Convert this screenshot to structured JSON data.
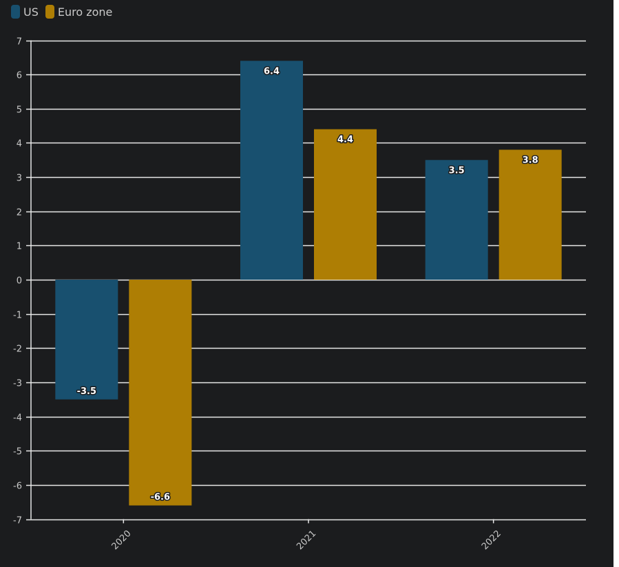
{
  "chart_data": {
    "type": "bar",
    "categories": [
      "2020",
      "2021",
      "2022"
    ],
    "series": [
      {
        "name": "US",
        "values": [
          -3.5,
          6.4,
          3.5
        ],
        "color": "#18506f"
      },
      {
        "name": "Euro zone",
        "values": [
          -6.6,
          4.4,
          3.8
        ],
        "color": "#ae7e04"
      }
    ],
    "title": "",
    "xlabel": "",
    "ylabel": "",
    "ylim": [
      -7,
      7
    ],
    "yticks": [
      "7",
      "6",
      "5",
      "4",
      "3",
      "2",
      "1",
      "0",
      "-1",
      "-2",
      "-3",
      "-4",
      "-5",
      "-6",
      "-7"
    ],
    "data_labels": [
      [
        "-3.5",
        "6.4",
        "3.5"
      ],
      [
        "-6.6",
        "4.4",
        "3.8"
      ]
    ],
    "grid": true,
    "legend_position": "top-left",
    "background_color": "#1b1c1e",
    "grid_color": "#e8e8e8"
  }
}
